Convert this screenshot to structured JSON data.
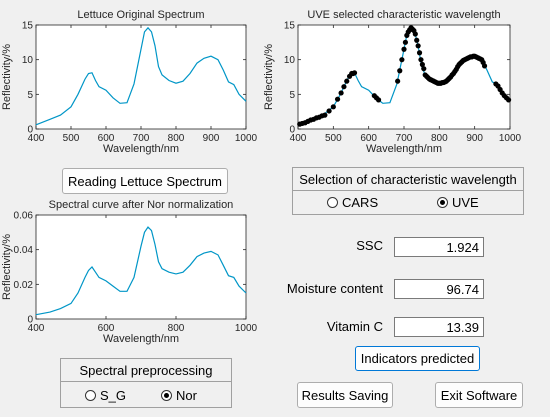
{
  "chart_data": [
    {
      "type": "line",
      "title": "Lettuce Original Spectrum",
      "xlabel": "Wavelength/nm",
      "ylabel": "Reflectivity/%",
      "xlim": [
        400,
        1000
      ],
      "ylim": [
        0,
        15
      ],
      "xticks": [
        "400",
        "500",
        "600",
        "700",
        "800",
        "900",
        "1000"
      ],
      "yticks": [
        "0",
        "5",
        "10",
        "15"
      ],
      "series": [
        {
          "color": "#0096c7",
          "x": [
            400,
            440,
            470,
            500,
            520,
            540,
            550,
            560,
            570,
            580,
            600,
            620,
            640,
            660,
            680,
            700,
            710,
            720,
            730,
            740,
            750,
            760,
            780,
            800,
            820,
            840,
            860,
            880,
            900,
            920,
            935,
            950,
            965,
            980,
            1000
          ],
          "y": [
            0.6,
            1.4,
            2.0,
            3.2,
            5.0,
            7.2,
            8.0,
            8.1,
            7.0,
            6.1,
            5.6,
            4.5,
            3.7,
            3.8,
            6.5,
            11.5,
            14.0,
            14.6,
            14.0,
            12.0,
            9.0,
            7.8,
            7.0,
            6.6,
            6.9,
            8.0,
            9.5,
            10.2,
            10.5,
            10.0,
            8.5,
            6.8,
            6.4,
            5.0,
            4.0
          ]
        }
      ]
    },
    {
      "type": "line",
      "title": "UVE selected characteristic wavelength",
      "xlabel": "Wavelength/nm",
      "ylabel": "Reflectivity/%",
      "xlim": [
        400,
        1000
      ],
      "ylim": [
        0,
        15
      ],
      "xticks": [
        "400",
        "500",
        "600",
        "700",
        "800",
        "900",
        "1000"
      ],
      "yticks": [
        "0",
        "5",
        "10",
        "15"
      ],
      "series": [
        {
          "color": "#0096c7",
          "x": [
            400,
            440,
            470,
            500,
            520,
            540,
            550,
            560,
            570,
            580,
            600,
            620,
            640,
            660,
            680,
            700,
            710,
            720,
            730,
            740,
            750,
            760,
            780,
            800,
            820,
            840,
            860,
            880,
            900,
            920,
            935,
            950,
            965,
            980,
            1000
          ],
          "y": [
            0.6,
            1.4,
            2.0,
            3.2,
            5.0,
            7.2,
            8.0,
            8.1,
            7.0,
            6.1,
            5.6,
            4.5,
            3.7,
            3.8,
            6.5,
            11.5,
            14.0,
            14.6,
            14.0,
            12.0,
            9.0,
            7.8,
            7.0,
            6.6,
            6.9,
            8.0,
            9.5,
            10.2,
            10.5,
            10.0,
            8.5,
            6.8,
            6.4,
            5.0,
            4.0
          ]
        }
      ],
      "markers": {
        "color": "#000000",
        "x": [
          405,
          412,
          420,
          428,
          436,
          444,
          452,
          460,
          468,
          476,
          488,
          500,
          512,
          522,
          530,
          538,
          546,
          552,
          556,
          560,
          616,
          622,
          628,
          682,
          688,
          694,
          700,
          704,
          708,
          712,
          716,
          720,
          724,
          728,
          732,
          736,
          740,
          744,
          748,
          752,
          756,
          760,
          764,
          768,
          772,
          776,
          780,
          784,
          788,
          792,
          796,
          800,
          804,
          808,
          812,
          816,
          820,
          824,
          828,
          832,
          836,
          840,
          844,
          848,
          852,
          856,
          860,
          864,
          868,
          872,
          876,
          880,
          884,
          888,
          892,
          896,
          900,
          904,
          908,
          912,
          916,
          920,
          924,
          928,
          960,
          966,
          972,
          978,
          984,
          990,
          996
        ],
        "y": [
          0.7,
          0.8,
          0.9,
          1.1,
          1.3,
          1.4,
          1.6,
          1.7,
          1.9,
          2.0,
          2.6,
          3.2,
          4.3,
          5.2,
          6.1,
          6.9,
          7.6,
          8.0,
          8.0,
          8.1,
          4.8,
          4.5,
          4.2,
          6.9,
          8.4,
          10.0,
          11.5,
          12.5,
          13.5,
          14.0,
          14.3,
          14.6,
          14.4,
          14.2,
          13.7,
          12.8,
          12.0,
          11.0,
          10.0,
          9.3,
          8.7,
          7.8,
          7.6,
          7.4,
          7.2,
          7.1,
          7.0,
          6.9,
          6.8,
          6.7,
          6.6,
          6.6,
          6.6,
          6.7,
          6.7,
          6.8,
          6.9,
          7.1,
          7.3,
          7.5,
          7.8,
          8.0,
          8.3,
          8.6,
          9.0,
          9.3,
          9.5,
          9.7,
          9.9,
          10.0,
          10.1,
          10.2,
          10.3,
          10.4,
          10.4,
          10.5,
          10.5,
          10.4,
          10.3,
          10.2,
          10.1,
          10.0,
          9.6,
          9.1,
          6.5,
          6.2,
          5.7,
          5.2,
          4.8,
          4.5,
          4.2
        ]
      }
    },
    {
      "type": "line",
      "title": "Spectral curve after Nor normalization",
      "xlabel": "Wavelength/nm",
      "ylabel": "Reflectivity/%",
      "xlim": [
        400,
        1000
      ],
      "ylim": [
        0,
        0.06
      ],
      "xticks": [
        "400",
        "600",
        "800",
        "1000"
      ],
      "yticks": [
        "0",
        "0.02",
        "0.04",
        "0.06"
      ],
      "series": [
        {
          "color": "#0096c7",
          "x": [
            400,
            440,
            470,
            500,
            520,
            540,
            550,
            560,
            570,
            580,
            600,
            620,
            640,
            660,
            680,
            700,
            710,
            720,
            730,
            740,
            750,
            760,
            780,
            800,
            820,
            840,
            860,
            880,
            900,
            920,
            935,
            950,
            965,
            980,
            1000
          ],
          "y": [
            0.0025,
            0.004,
            0.006,
            0.009,
            0.015,
            0.024,
            0.028,
            0.03,
            0.027,
            0.024,
            0.022,
            0.019,
            0.016,
            0.016,
            0.024,
            0.042,
            0.05,
            0.053,
            0.051,
            0.043,
            0.033,
            0.029,
            0.027,
            0.026,
            0.027,
            0.031,
            0.036,
            0.038,
            0.039,
            0.037,
            0.031,
            0.025,
            0.024,
            0.019,
            0.015
          ]
        }
      ]
    }
  ],
  "buttons": {
    "read": "Reading Lettuce Spectrum",
    "predict": "Indicators predicted",
    "save": "Results Saving",
    "exit": "Exit Software"
  },
  "wavelength_selection": {
    "title": "Selection of characteristic wavelength",
    "options": [
      {
        "label": "CARS",
        "selected": false
      },
      {
        "label": "UVE",
        "selected": true
      }
    ]
  },
  "preprocessing": {
    "title": "Spectral preprocessing",
    "options": [
      {
        "label": "S_G",
        "selected": false
      },
      {
        "label": "Nor",
        "selected": true
      }
    ]
  },
  "results": {
    "ssc_label": "SSC",
    "ssc_value": "1.924",
    "moisture_label": "Moisture content",
    "moisture_value": "96.74",
    "vitc_label": "Vitamin C",
    "vitc_value": "13.39"
  }
}
